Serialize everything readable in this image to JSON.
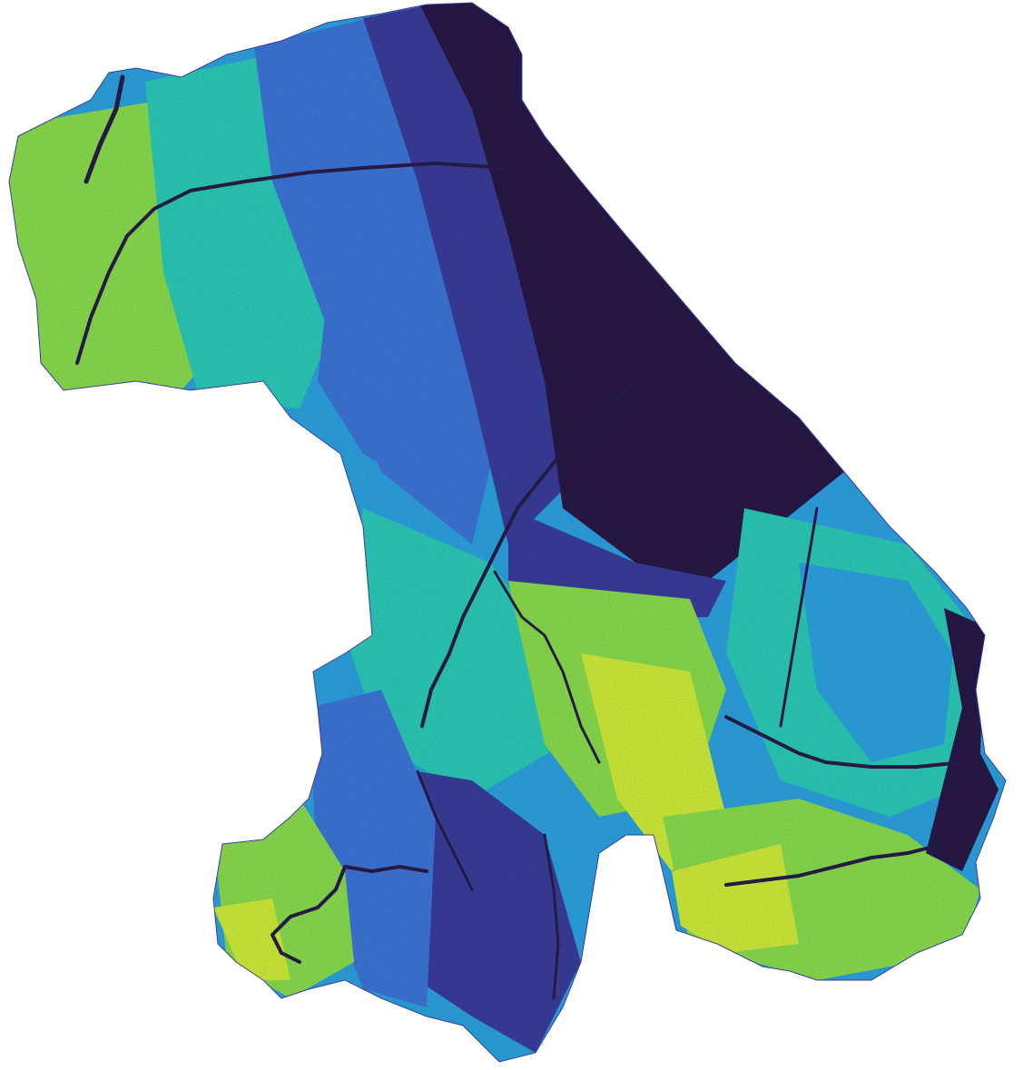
{
  "map": {
    "kind": "slope raster choropleth",
    "colors": {
      "background": "#ffffff",
      "very_low": "#2a1848",
      "low": "#3b3f9a",
      "mid_low": "#3f78d8",
      "mid": "#2fa6e0",
      "mid_high": "#2ecfb8",
      "high": "#8fe24e",
      "very_high": "#d7f23a",
      "drainage": "#241a44"
    }
  }
}
